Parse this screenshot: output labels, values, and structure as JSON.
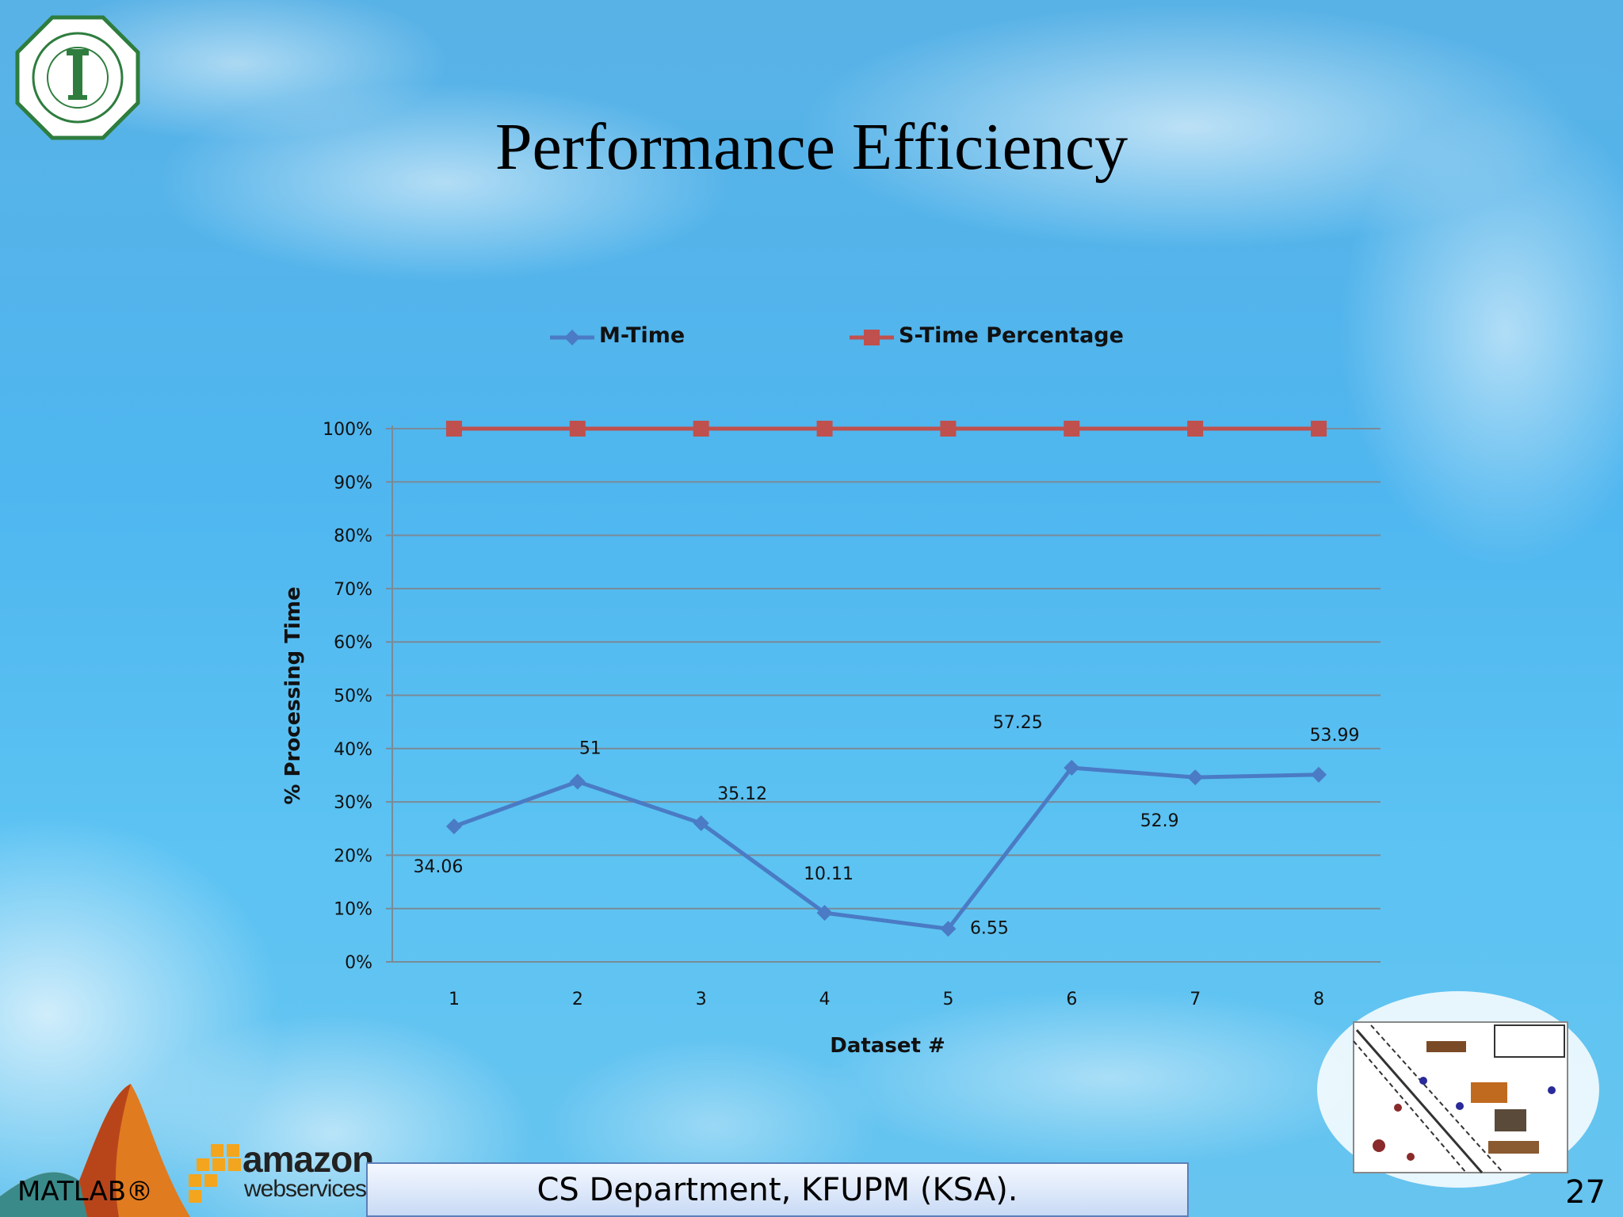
{
  "slide": {
    "title": "Performance Efficiency",
    "footer": "CS Department, KFUPM (KSA).",
    "page_number": "27",
    "matlab_label": "MATLAB®",
    "aws_logo": {
      "word": "amazon",
      "sub": "webservices",
      "icon": "aws-cubes-icon"
    },
    "university_logo": {
      "icon": "kfupm-seal-icon"
    },
    "svm_illustration": {
      "icon": "svm-classification-illustration"
    },
    "matlab_logo": {
      "icon": "matlab-membrane-icon"
    }
  },
  "colors": {
    "m_time": "#4a7bc4",
    "s_time": "#c0504d",
    "grid": "#7a8a96",
    "axis": "#7a8a96",
    "text": "#111111"
  },
  "chart_data": {
    "type": "line",
    "x": [
      "1",
      "2",
      "3",
      "4",
      "5",
      "6",
      "7",
      "8"
    ],
    "xlabel": "Dataset #",
    "ylabel": "% Processing Time",
    "ylim": [
      0,
      100
    ],
    "y_ticks": [
      "0%",
      "10%",
      "20%",
      "30%",
      "40%",
      "50%",
      "60%",
      "70%",
      "80%",
      "90%",
      "100%"
    ],
    "grid": true,
    "legend_position": "top",
    "series": [
      {
        "name": "M-Time",
        "marker": "diamond",
        "values": [
          25.4,
          33.8,
          26.0,
          9.2,
          6.2,
          36.4,
          34.6,
          35.1
        ],
        "data_labels": [
          "34.06",
          "51",
          "35.12",
          "10.11",
          "6.55",
          "57.25",
          "52.9",
          "53.99"
        ]
      },
      {
        "name": "S-Time Percentage",
        "marker": "square",
        "values": [
          100,
          100,
          100,
          100,
          100,
          100,
          100,
          100
        ]
      }
    ]
  }
}
